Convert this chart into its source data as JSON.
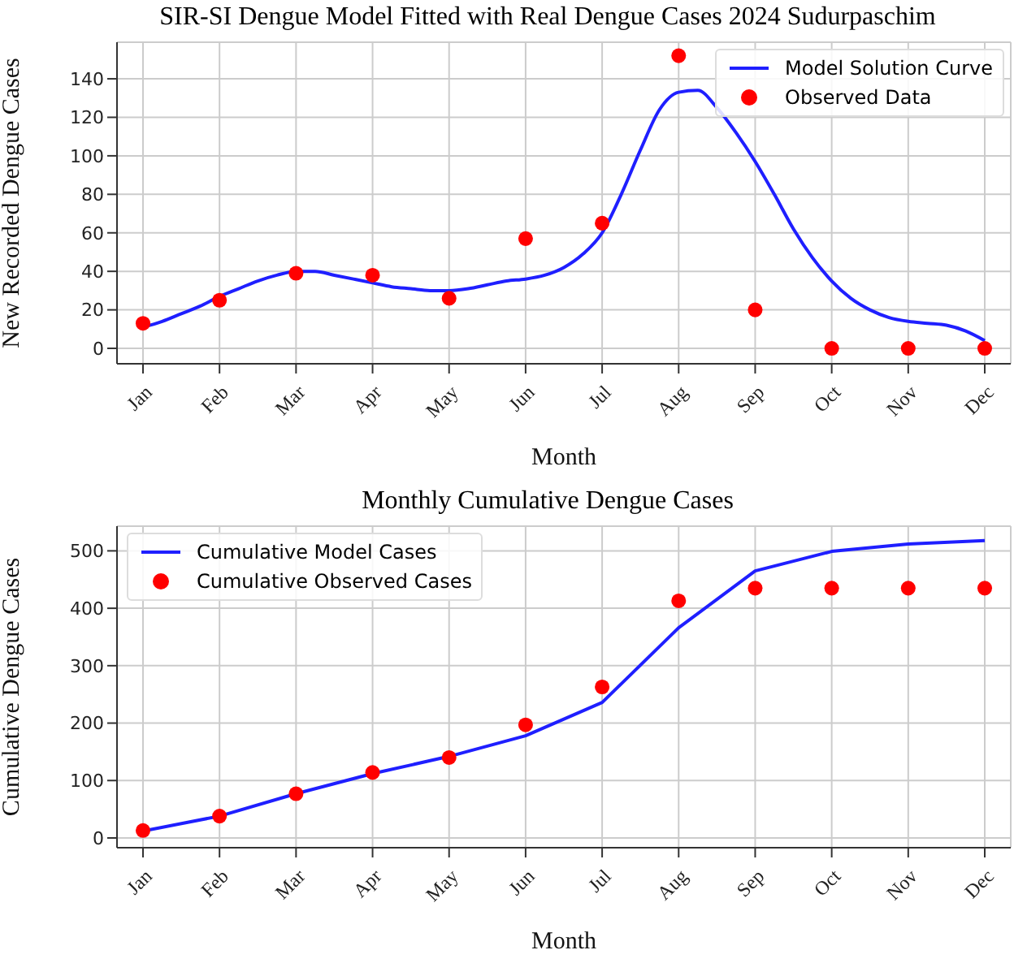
{
  "chart_data": [
    {
      "type": "line",
      "title": "SIR-SI Dengue Model Fitted with Real Dengue Cases 2024 Sudurpaschim",
      "xlabel": "Month",
      "ylabel": "New Recorded Dengue Cases",
      "categories": [
        "Jan",
        null,
        null,
        null,
        "Feb",
        null,
        null,
        null,
        "Mar",
        null,
        null,
        null,
        "Apr",
        null,
        null,
        null,
        "May",
        null,
        null,
        null,
        "Jun",
        null,
        null,
        null,
        "Jul",
        null,
        null,
        null,
        "Aug",
        null,
        null,
        null,
        "Sep",
        null,
        null,
        null,
        "Oct",
        null,
        null,
        null,
        "Nov",
        null,
        null,
        null,
        "Dec"
      ],
      "ylim": [
        -8,
        159
      ],
      "yticks": [
        0,
        20,
        40,
        60,
        80,
        100,
        120,
        140
      ],
      "grid": true,
      "legend": "top right",
      "series": [
        {
          "name": "Model Solution Curve",
          "color": "#1f1fff",
          "marker": "none",
          "values": [
            11,
            14,
            18,
            22,
            27,
            31,
            35,
            38,
            40,
            40,
            38,
            36,
            34,
            32,
            31,
            30,
            30,
            31,
            33,
            35,
            36,
            38,
            42,
            49,
            60,
            80,
            103,
            124,
            133,
            134,
            125,
            112,
            97,
            80,
            62,
            47,
            35,
            26,
            20,
            16,
            14,
            13,
            12,
            9,
            4
          ]
        },
        {
          "name": "Observed Data",
          "type": "scatter",
          "color": "#ff0000",
          "marker": "circle",
          "values": [
            13,
            null,
            null,
            null,
            25,
            null,
            null,
            null,
            39,
            null,
            null,
            null,
            38,
            null,
            null,
            null,
            26,
            null,
            null,
            null,
            57,
            null,
            null,
            null,
            65,
            null,
            null,
            null,
            152,
            null,
            null,
            null,
            20,
            null,
            null,
            null,
            0,
            null,
            null,
            null,
            0,
            null,
            null,
            null,
            0
          ]
        }
      ]
    },
    {
      "type": "line",
      "title": "Monthly Cumulative Dengue Cases",
      "xlabel": "Month",
      "ylabel": "Cumulative Dengue Cases",
      "categories": [
        "Jan",
        "Feb",
        "Mar",
        "Apr",
        "May",
        "Jun",
        "Jul",
        "Aug",
        "Sep",
        "Oct",
        "Nov",
        "Dec"
      ],
      "ylim": [
        -17,
        543
      ],
      "yticks": [
        0,
        100,
        200,
        300,
        400,
        500
      ],
      "grid": true,
      "legend": "top left",
      "series": [
        {
          "name": "Cumulative Model Cases",
          "color": "#1f1fff",
          "marker": "none",
          "values": [
            12,
            38,
            77,
            112,
            142,
            178,
            236,
            366,
            465,
            499,
            512,
            518
          ]
        },
        {
          "name": "Cumulative Observed Cases",
          "type": "scatter",
          "color": "#ff0000",
          "marker": "circle",
          "values": [
            13,
            38,
            77,
            114,
            140,
            197,
            263,
            413,
            435,
            435,
            435,
            435
          ]
        }
      ]
    }
  ]
}
